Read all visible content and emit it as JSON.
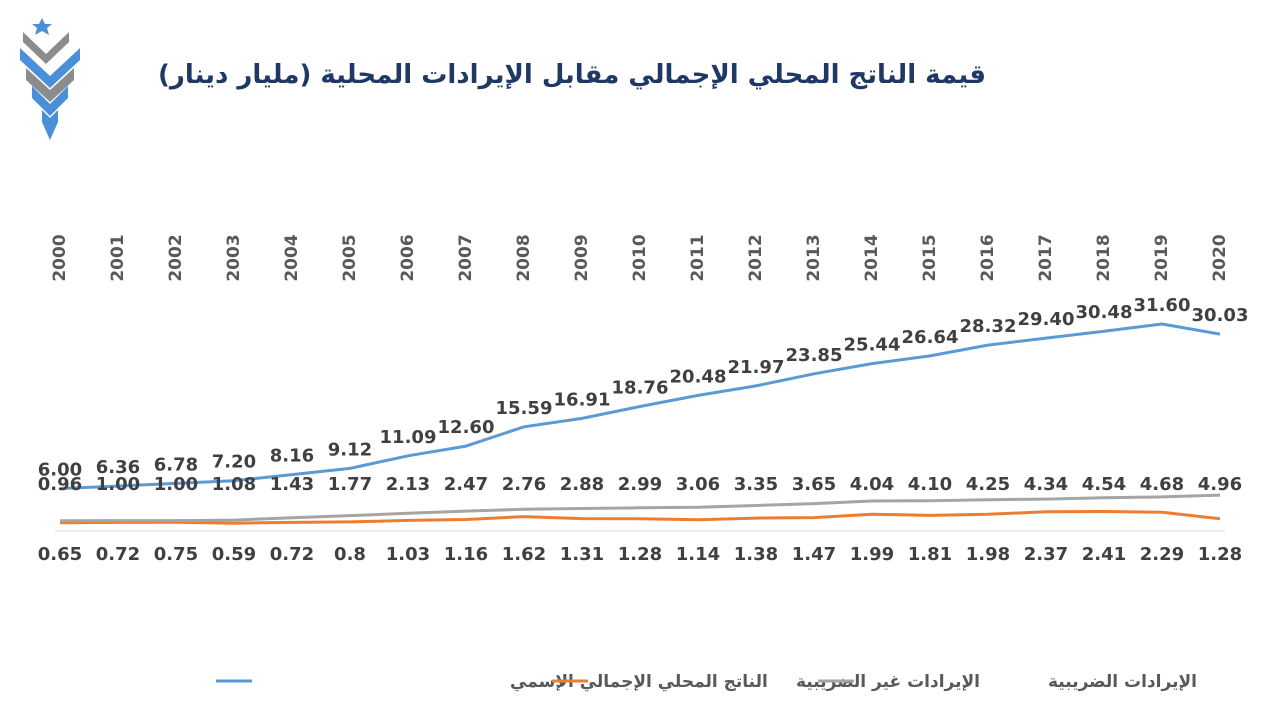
{
  "title": "قيمة الناتج المحلي الإجمالي مقابل الإيرادات المحلية (مليار دينار)",
  "colors": {
    "title": "#1f3864",
    "gdp": "#5b9bd5",
    "non_tax": "#ed7d31",
    "tax": "#a5a5a5",
    "logo_blue": "#4a90d9",
    "logo_gray": "#8c8c8c"
  },
  "logo": {
    "icon": "star-chevron-logo-icon"
  },
  "chart_data": {
    "type": "line",
    "title": "قيمة الناتج المحلي الإجمالي مقابل الإيرادات المحلية (مليار دينار)",
    "x": [
      "2000",
      "2001",
      "2002",
      "2003",
      "2004",
      "2005",
      "2006",
      "2007",
      "2008",
      "2009",
      "2010",
      "2011",
      "2012",
      "2013",
      "2014",
      "2015",
      "2016",
      "2017",
      "2018",
      "2019",
      "2020"
    ],
    "xaxis_position": "top",
    "grid": false,
    "legend_position": "bottom",
    "ylim": [
      0,
      32
    ],
    "series": [
      {
        "name": "الناتج المحلي الإجمالي الإسمي",
        "key": "gdp",
        "values": [
          6.0,
          6.36,
          6.78,
          7.2,
          8.16,
          9.12,
          11.09,
          12.6,
          15.59,
          16.91,
          18.76,
          20.48,
          21.97,
          23.85,
          25.44,
          26.64,
          28.32,
          29.4,
          30.48,
          31.6,
          30.03
        ],
        "labels": [
          "6.00",
          "6.36",
          "6.78",
          "7.20",
          "8.16",
          "9.12",
          "11.09",
          "12.60",
          "15.59",
          "16.91",
          "18.76",
          "20.48",
          "21.97",
          "23.85",
          "25.44",
          "26.64",
          "28.32",
          "29.40",
          "30.48",
          "31.60",
          "30.03"
        ]
      },
      {
        "name": "الإيرادات غير الضريبية",
        "key": "non_tax",
        "values": [
          0.65,
          0.72,
          0.75,
          0.59,
          0.72,
          0.8,
          1.03,
          1.16,
          1.62,
          1.31,
          1.28,
          1.14,
          1.38,
          1.47,
          1.99,
          1.81,
          1.98,
          2.37,
          2.41,
          2.29,
          1.28
        ],
        "labels": [
          "0.65",
          "0.72",
          "0.75",
          "0.59",
          "0.72",
          "0.8",
          "1.03",
          "1.16",
          "1.62",
          "1.31",
          "1.28",
          "1.14",
          "1.38",
          "1.47",
          "1.99",
          "1.81",
          "1.98",
          "2.37",
          "2.41",
          "2.29",
          "1.28"
        ]
      },
      {
        "name": "الإيرادات الضريبية",
        "key": "tax",
        "values": [
          0.96,
          1.0,
          1.0,
          1.08,
          1.43,
          1.77,
          2.13,
          2.47,
          2.76,
          2.88,
          2.99,
          3.06,
          3.35,
          3.65,
          4.04,
          4.1,
          4.25,
          4.34,
          4.54,
          4.68,
          4.96
        ],
        "labels": [
          "0.96",
          "1.00",
          "1.00",
          "1.08",
          "1.43",
          "1.77",
          "2.13",
          "2.47",
          "2.76",
          "2.88",
          "2.99",
          "3.06",
          "3.35",
          "3.65",
          "4.04",
          "4.10",
          "4.25",
          "4.34",
          "4.54",
          "4.68",
          "4.96"
        ]
      }
    ]
  }
}
